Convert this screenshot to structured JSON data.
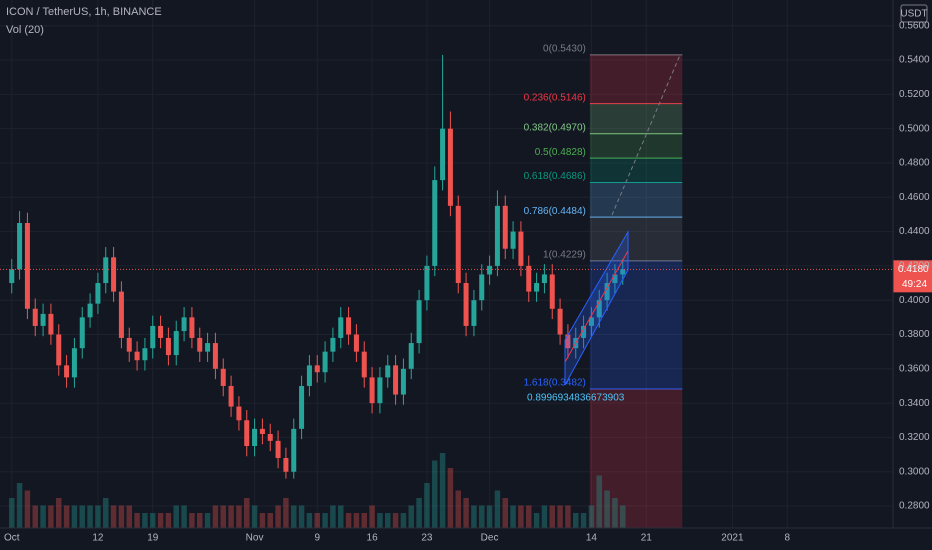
{
  "chart_data": {
    "type": "candlestick",
    "title": "ICON / TetherUS, 1h, BINANCE",
    "subtitle": "Vol (20)",
    "currency": "USDT",
    "up_color": "#26a69a",
    "down_color": "#ef5350",
    "grid": true,
    "xlim": [
      -0.5,
      113.5
    ],
    "ylim": [
      0.2672,
      0.575
    ],
    "yticks": [
      {
        "value": 0.28,
        "label": "0.2800"
      },
      {
        "value": 0.3,
        "label": "0.3000"
      },
      {
        "value": 0.32,
        "label": "0.3200"
      },
      {
        "value": 0.34,
        "label": "0.3400"
      },
      {
        "value": 0.36,
        "label": "0.3600"
      },
      {
        "value": 0.38,
        "label": "0.3800"
      },
      {
        "value": 0.4,
        "label": "0.4000"
      },
      {
        "value": 0.42,
        "label": "0.4200"
      },
      {
        "value": 0.44,
        "label": "0.4400"
      },
      {
        "value": 0.46,
        "label": "0.4600"
      },
      {
        "value": 0.48,
        "label": "0.4800"
      },
      {
        "value": 0.5,
        "label": "0.5000"
      },
      {
        "value": 0.52,
        "label": "0.5200"
      },
      {
        "value": 0.54,
        "label": "0.5400"
      },
      {
        "value": 0.56,
        "label": "0.5600"
      }
    ],
    "xticks": [
      {
        "value": 1,
        "label": "Oct"
      },
      {
        "value": 12,
        "label": "12"
      },
      {
        "value": 19,
        "label": "19"
      },
      {
        "value": 32,
        "label": "Nov"
      },
      {
        "value": 40,
        "label": "9"
      },
      {
        "value": 47,
        "label": "16"
      },
      {
        "value": 54,
        "label": "23"
      },
      {
        "value": 62,
        "label": "Dec"
      },
      {
        "value": 75,
        "label": "14"
      },
      {
        "value": 82,
        "label": "21"
      },
      {
        "value": 93,
        "label": "2021"
      },
      {
        "value": 100,
        "label": "8"
      }
    ],
    "x": [
      1,
      2,
      3,
      4,
      5,
      6,
      7,
      8,
      9,
      10,
      11,
      12,
      13,
      14,
      15,
      16,
      17,
      18,
      19,
      20,
      21,
      22,
      23,
      24,
      25,
      26,
      27,
      28,
      29,
      30,
      31,
      32,
      33,
      34,
      35,
      36,
      37,
      38,
      39,
      40,
      41,
      42,
      43,
      44,
      45,
      46,
      47,
      48,
      49,
      50,
      51,
      52,
      53,
      54,
      55,
      56,
      57,
      58,
      59,
      60,
      61,
      62,
      63,
      64,
      65,
      66,
      67,
      68,
      69,
      70,
      71,
      72,
      73,
      74,
      75,
      76,
      77,
      78,
      79
    ],
    "open": [
      0.41,
      0.418,
      0.445,
      0.395,
      0.385,
      0.392,
      0.38,
      0.362,
      0.355,
      0.372,
      0.39,
      0.398,
      0.41,
      0.425,
      0.405,
      0.378,
      0.37,
      0.365,
      0.372,
      0.385,
      0.378,
      0.368,
      0.382,
      0.39,
      0.378,
      0.37,
      0.375,
      0.36,
      0.35,
      0.338,
      0.33,
      0.315,
      0.325,
      0.322,
      0.318,
      0.308,
      0.3,
      0.325,
      0.35,
      0.362,
      0.358,
      0.37,
      0.378,
      0.39,
      0.38,
      0.37,
      0.355,
      0.34,
      0.355,
      0.362,
      0.345,
      0.36,
      0.375,
      0.4,
      0.42,
      0.47,
      0.5,
      0.455,
      0.41,
      0.385,
      0.4,
      0.415,
      0.42,
      0.455,
      0.43,
      0.44,
      0.42,
      0.405,
      0.41,
      0.415,
      0.395,
      0.38,
      0.372,
      0.378,
      0.385,
      0.39,
      0.4,
      0.41,
      0.415
    ],
    "high": [
      0.424,
      0.452,
      0.451,
      0.401,
      0.398,
      0.398,
      0.386,
      0.368,
      0.378,
      0.396,
      0.404,
      0.416,
      0.431,
      0.431,
      0.411,
      0.384,
      0.376,
      0.378,
      0.391,
      0.391,
      0.384,
      0.388,
      0.396,
      0.396,
      0.384,
      0.381,
      0.381,
      0.366,
      0.356,
      0.344,
      0.336,
      0.331,
      0.331,
      0.328,
      0.324,
      0.314,
      0.331,
      0.356,
      0.368,
      0.368,
      0.376,
      0.384,
      0.396,
      0.396,
      0.386,
      0.376,
      0.361,
      0.361,
      0.368,
      0.368,
      0.366,
      0.381,
      0.406,
      0.426,
      0.478,
      0.543,
      0.51,
      0.461,
      0.416,
      0.406,
      0.421,
      0.426,
      0.464,
      0.461,
      0.446,
      0.446,
      0.426,
      0.416,
      0.421,
      0.421,
      0.401,
      0.386,
      0.384,
      0.391,
      0.396,
      0.406,
      0.416,
      0.421,
      0.424
    ],
    "low": [
      0.404,
      0.412,
      0.389,
      0.379,
      0.379,
      0.374,
      0.356,
      0.349,
      0.349,
      0.366,
      0.384,
      0.392,
      0.404,
      0.399,
      0.372,
      0.364,
      0.359,
      0.359,
      0.366,
      0.372,
      0.362,
      0.362,
      0.376,
      0.372,
      0.364,
      0.364,
      0.354,
      0.344,
      0.332,
      0.324,
      0.309,
      0.309,
      0.316,
      0.312,
      0.302,
      0.296,
      0.296,
      0.319,
      0.344,
      0.352,
      0.352,
      0.364,
      0.372,
      0.374,
      0.364,
      0.349,
      0.334,
      0.334,
      0.349,
      0.339,
      0.339,
      0.354,
      0.369,
      0.394,
      0.414,
      0.464,
      0.449,
      0.404,
      0.379,
      0.379,
      0.394,
      0.409,
      0.414,
      0.424,
      0.424,
      0.414,
      0.399,
      0.399,
      0.404,
      0.389,
      0.374,
      0.366,
      0.366,
      0.372,
      0.379,
      0.384,
      0.394,
      0.404,
      0.409
    ],
    "close": [
      0.418,
      0.445,
      0.395,
      0.385,
      0.392,
      0.38,
      0.362,
      0.355,
      0.372,
      0.39,
      0.398,
      0.41,
      0.425,
      0.405,
      0.378,
      0.37,
      0.365,
      0.372,
      0.385,
      0.378,
      0.368,
      0.382,
      0.39,
      0.378,
      0.37,
      0.375,
      0.36,
      0.35,
      0.338,
      0.33,
      0.315,
      0.325,
      0.322,
      0.318,
      0.308,
      0.3,
      0.325,
      0.35,
      0.362,
      0.358,
      0.37,
      0.378,
      0.39,
      0.38,
      0.37,
      0.355,
      0.34,
      0.355,
      0.362,
      0.345,
      0.36,
      0.375,
      0.4,
      0.42,
      0.47,
      0.5,
      0.455,
      0.41,
      0.385,
      0.4,
      0.415,
      0.42,
      0.455,
      0.43,
      0.44,
      0.42,
      0.405,
      0.41,
      0.415,
      0.395,
      0.38,
      0.372,
      0.378,
      0.385,
      0.39,
      0.4,
      0.41,
      0.415,
      0.418
    ],
    "volume": [
      4,
      6,
      5,
      3,
      3,
      3,
      4,
      3,
      3,
      3,
      3,
      3,
      4,
      3,
      3,
      3,
      2,
      2,
      2,
      2,
      2,
      3,
      3,
      2,
      2,
      2,
      3,
      3,
      3,
      3,
      4,
      3,
      2,
      2,
      3,
      4,
      3,
      3,
      2,
      2,
      2,
      3,
      3,
      2,
      2,
      2,
      3,
      2,
      2,
      2,
      2,
      3,
      4,
      6,
      9,
      10,
      8,
      5,
      4,
      3,
      3,
      3,
      5,
      4,
      3,
      3,
      3,
      2,
      3,
      3,
      3,
      3,
      2,
      2,
      3,
      7,
      5,
      4,
      3
    ],
    "last_price": 0.418,
    "last_price_label": "0.4180",
    "countdown": "49:24",
    "fib_x": [
      74.8,
      86.6
    ],
    "fib_levels": [
      {
        "label": "0(0.5430)",
        "value": 0.543,
        "color": "#787b86"
      },
      {
        "label": "0.236(0.5146)",
        "value": 0.5146,
        "color": "#f23645"
      },
      {
        "label": "0.382(0.4970)",
        "value": 0.497,
        "color": "#81c784"
      },
      {
        "label": "0.5(0.4828)",
        "value": 0.4828,
        "color": "#4caf50"
      },
      {
        "label": "0.618(0.4686)",
        "value": 0.4686,
        "color": "#089981"
      },
      {
        "label": "0.786(0.4484)",
        "value": 0.4484,
        "color": "#64b5f6"
      },
      {
        "label": "1(0.4229)",
        "value": 0.4229,
        "color": "#787b86"
      },
      {
        "label": "1.618(0.3482)",
        "value": 0.3482,
        "color": "#2962ff"
      }
    ],
    "annotation": "0.8996934836673903"
  }
}
